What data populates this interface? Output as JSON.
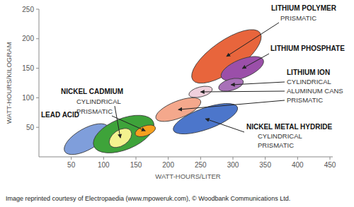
{
  "chart_data": {
    "type": "region",
    "x_label": "WATT-HOURS/LITER",
    "y_label": "WATT-HOURS/KILOGRAM",
    "xlim": [
      0,
      450
    ],
    "xticks": [
      50,
      100,
      150,
      200,
      250,
      300,
      350,
      400,
      450
    ],
    "ylim": [
      0,
      250
    ],
    "yticks": [
      50,
      100,
      150,
      200,
      250
    ],
    "grid": false,
    "series": [
      {
        "name": "LEAD ACID",
        "color": "#7f9edb",
        "x": [
          40,
          107
        ],
        "y": [
          9,
          51
        ]
      },
      {
        "name": "NICKEL CADMIUM",
        "color": "#3ea33a",
        "x": [
          85,
          177
        ],
        "y": [
          18,
          59
        ]
      },
      {
        "name": "CYLINDRICAL",
        "color": "#f3f28f",
        "x": [
          110,
          142
        ],
        "y": [
          20,
          44
        ]
      },
      {
        "name": "PRISMATIC",
        "color": "#f6a01e",
        "x": [
          149,
          180
        ],
        "y": [
          38,
          50
        ]
      },
      {
        "name": "LITHIUM POLYMER",
        "color": "#e8653c",
        "x": [
          238,
          342
        ],
        "y": [
          130,
          210
        ]
      },
      {
        "name": "LITHIUM PHOSPHATE",
        "color": "#9b4fa9",
        "x": [
          282,
          347
        ],
        "y": [
          135,
          164
        ]
      },
      {
        "name": "CYLINDRICAL",
        "color": "#a871b8",
        "x": [
          278,
          316
        ],
        "y": [
          116,
          128
        ]
      },
      {
        "name": "ALUMINUM CANS",
        "color": "#efd0dc",
        "x": [
          232,
          268
        ],
        "y": [
          105,
          115
        ]
      },
      {
        "name": "PRISMATIC",
        "color": "#f4a88c",
        "x": [
          181,
          250
        ],
        "y": [
          65,
          95
        ]
      },
      {
        "name": "NICKEL METAL HYDRIDE",
        "color": "#4c76cb",
        "x": [
          208,
          307
        ],
        "y": [
          45,
          84
        ]
      }
    ],
    "annotations": [
      "PRISMATIC",
      "LITHIUM ION",
      "CYLINDRICAL",
      "PRISMATIC"
    ],
    "note": "Image reprinted courtesy of Electropaedia (www.mpoweruk.com), © Woodbank Communications Ltd."
  }
}
